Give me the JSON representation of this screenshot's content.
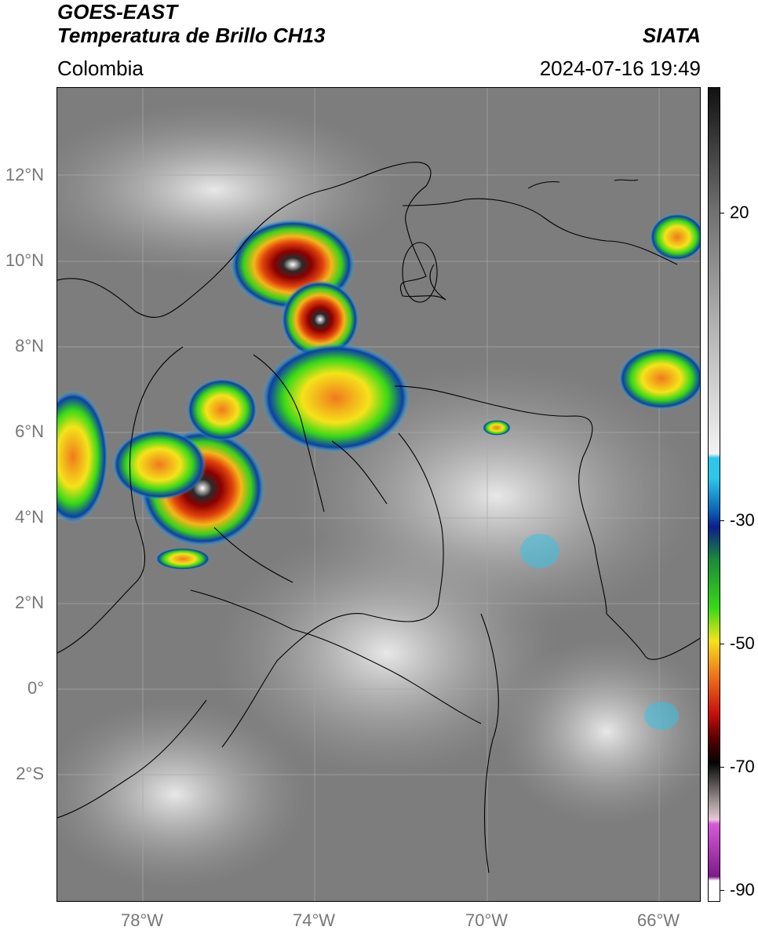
{
  "header": {
    "title_line1": "GOES-EAST",
    "title_line2": "Temperatura de Brillo CH13",
    "region": "Colombia",
    "source": "SIATA",
    "datetime": "2024-07-16 19:49"
  },
  "map": {
    "latitude_ticks": [
      "12°N",
      "10°N",
      "8°N",
      "6°N",
      "4°N",
      "2°N",
      "0°",
      "2°S"
    ],
    "longitude_ticks": [
      "78°W",
      "74°W",
      "70°W",
      "66°W"
    ],
    "colorbar": {
      "labels": [
        "20",
        "-30",
        "-50",
        "-70",
        "-90"
      ],
      "colors": {
        "warm_gray_top": "#111111",
        "cyan": "#2ec6ea",
        "dark_blue": "#0b1f8a",
        "green": "#39d916",
        "yellow": "#f5e31a",
        "orange": "#f07a1c",
        "red": "#c70e0e",
        "black": "#050505",
        "magenta": "#d85ad8",
        "purple": "#7c1a8a"
      }
    }
  }
}
